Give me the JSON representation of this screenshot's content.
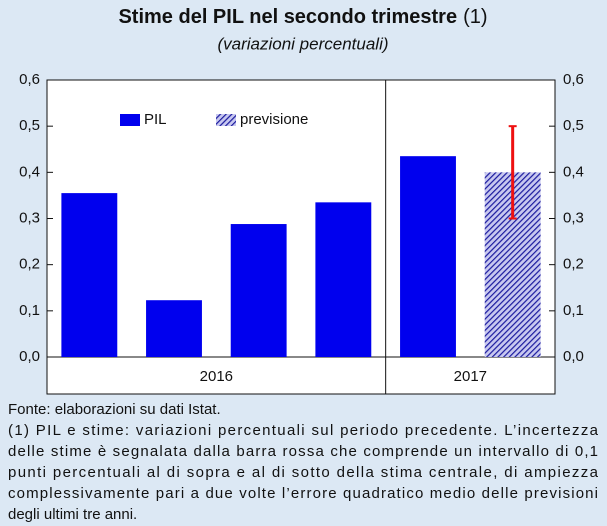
{
  "chart_data": {
    "type": "bar",
    "title": "Stime del PIL nel secondo trimestre",
    "title_note": "(1)",
    "subtitle": "(variazioni percentuali)",
    "categories": [
      null,
      null,
      null,
      null,
      null,
      null
    ],
    "groups": [
      {
        "label": "2016",
        "size": 4
      },
      {
        "label": "2017",
        "size": 2
      }
    ],
    "series": [
      {
        "name": "PIL",
        "color": "#0000ee",
        "values": [
          0.355,
          0.123,
          0.288,
          0.335,
          0.435,
          null
        ]
      },
      {
        "name": "previsione",
        "color": "#1a1a9e",
        "pattern": "hatch",
        "values": [
          null,
          null,
          null,
          null,
          null,
          0.4
        ],
        "error": [
          null,
          null,
          null,
          null,
          null,
          0.1
        ],
        "error_color": "#ee1111"
      }
    ],
    "ylim": [
      0,
      0.6
    ],
    "yticks": [
      {
        "value": 0,
        "label": "0,0"
      },
      {
        "value": 0.1,
        "label": "0,1"
      },
      {
        "value": 0.2,
        "label": "0,2"
      },
      {
        "value": 0.3,
        "label": "0,3"
      },
      {
        "value": 0.4,
        "label": "0,4"
      },
      {
        "value": 0.5,
        "label": "0,5"
      },
      {
        "value": 0.6,
        "label": "0,6"
      }
    ],
    "y2lim": [
      0,
      0.6
    ],
    "y2ticks": [
      {
        "value": 0,
        "label": "0,0"
      },
      {
        "value": 0.1,
        "label": "0,1"
      },
      {
        "value": 0.2,
        "label": "0,2"
      },
      {
        "value": 0.3,
        "label": "0,3"
      },
      {
        "value": 0.4,
        "label": "0,4"
      },
      {
        "value": 0.5,
        "label": "0,5"
      },
      {
        "value": 0.6,
        "label": "0,6"
      }
    ],
    "grid": false,
    "legend": "top",
    "notes": [
      "Fonte: elaborazioni su dati Istat.",
      "(1) PIL e stime: variazioni percentuali sul periodo precedente. L’incertezza",
      "delle stime è segnalata dalla barra rossa che comprende un intervallo di 0,1",
      "punti percentuali al di sopra e al di sotto della stima centrale, di ampiezza",
      "complessivamente pari a due volte l’errore quadratico medio delle previsioni",
      "degli ultimi tre anni."
    ]
  }
}
